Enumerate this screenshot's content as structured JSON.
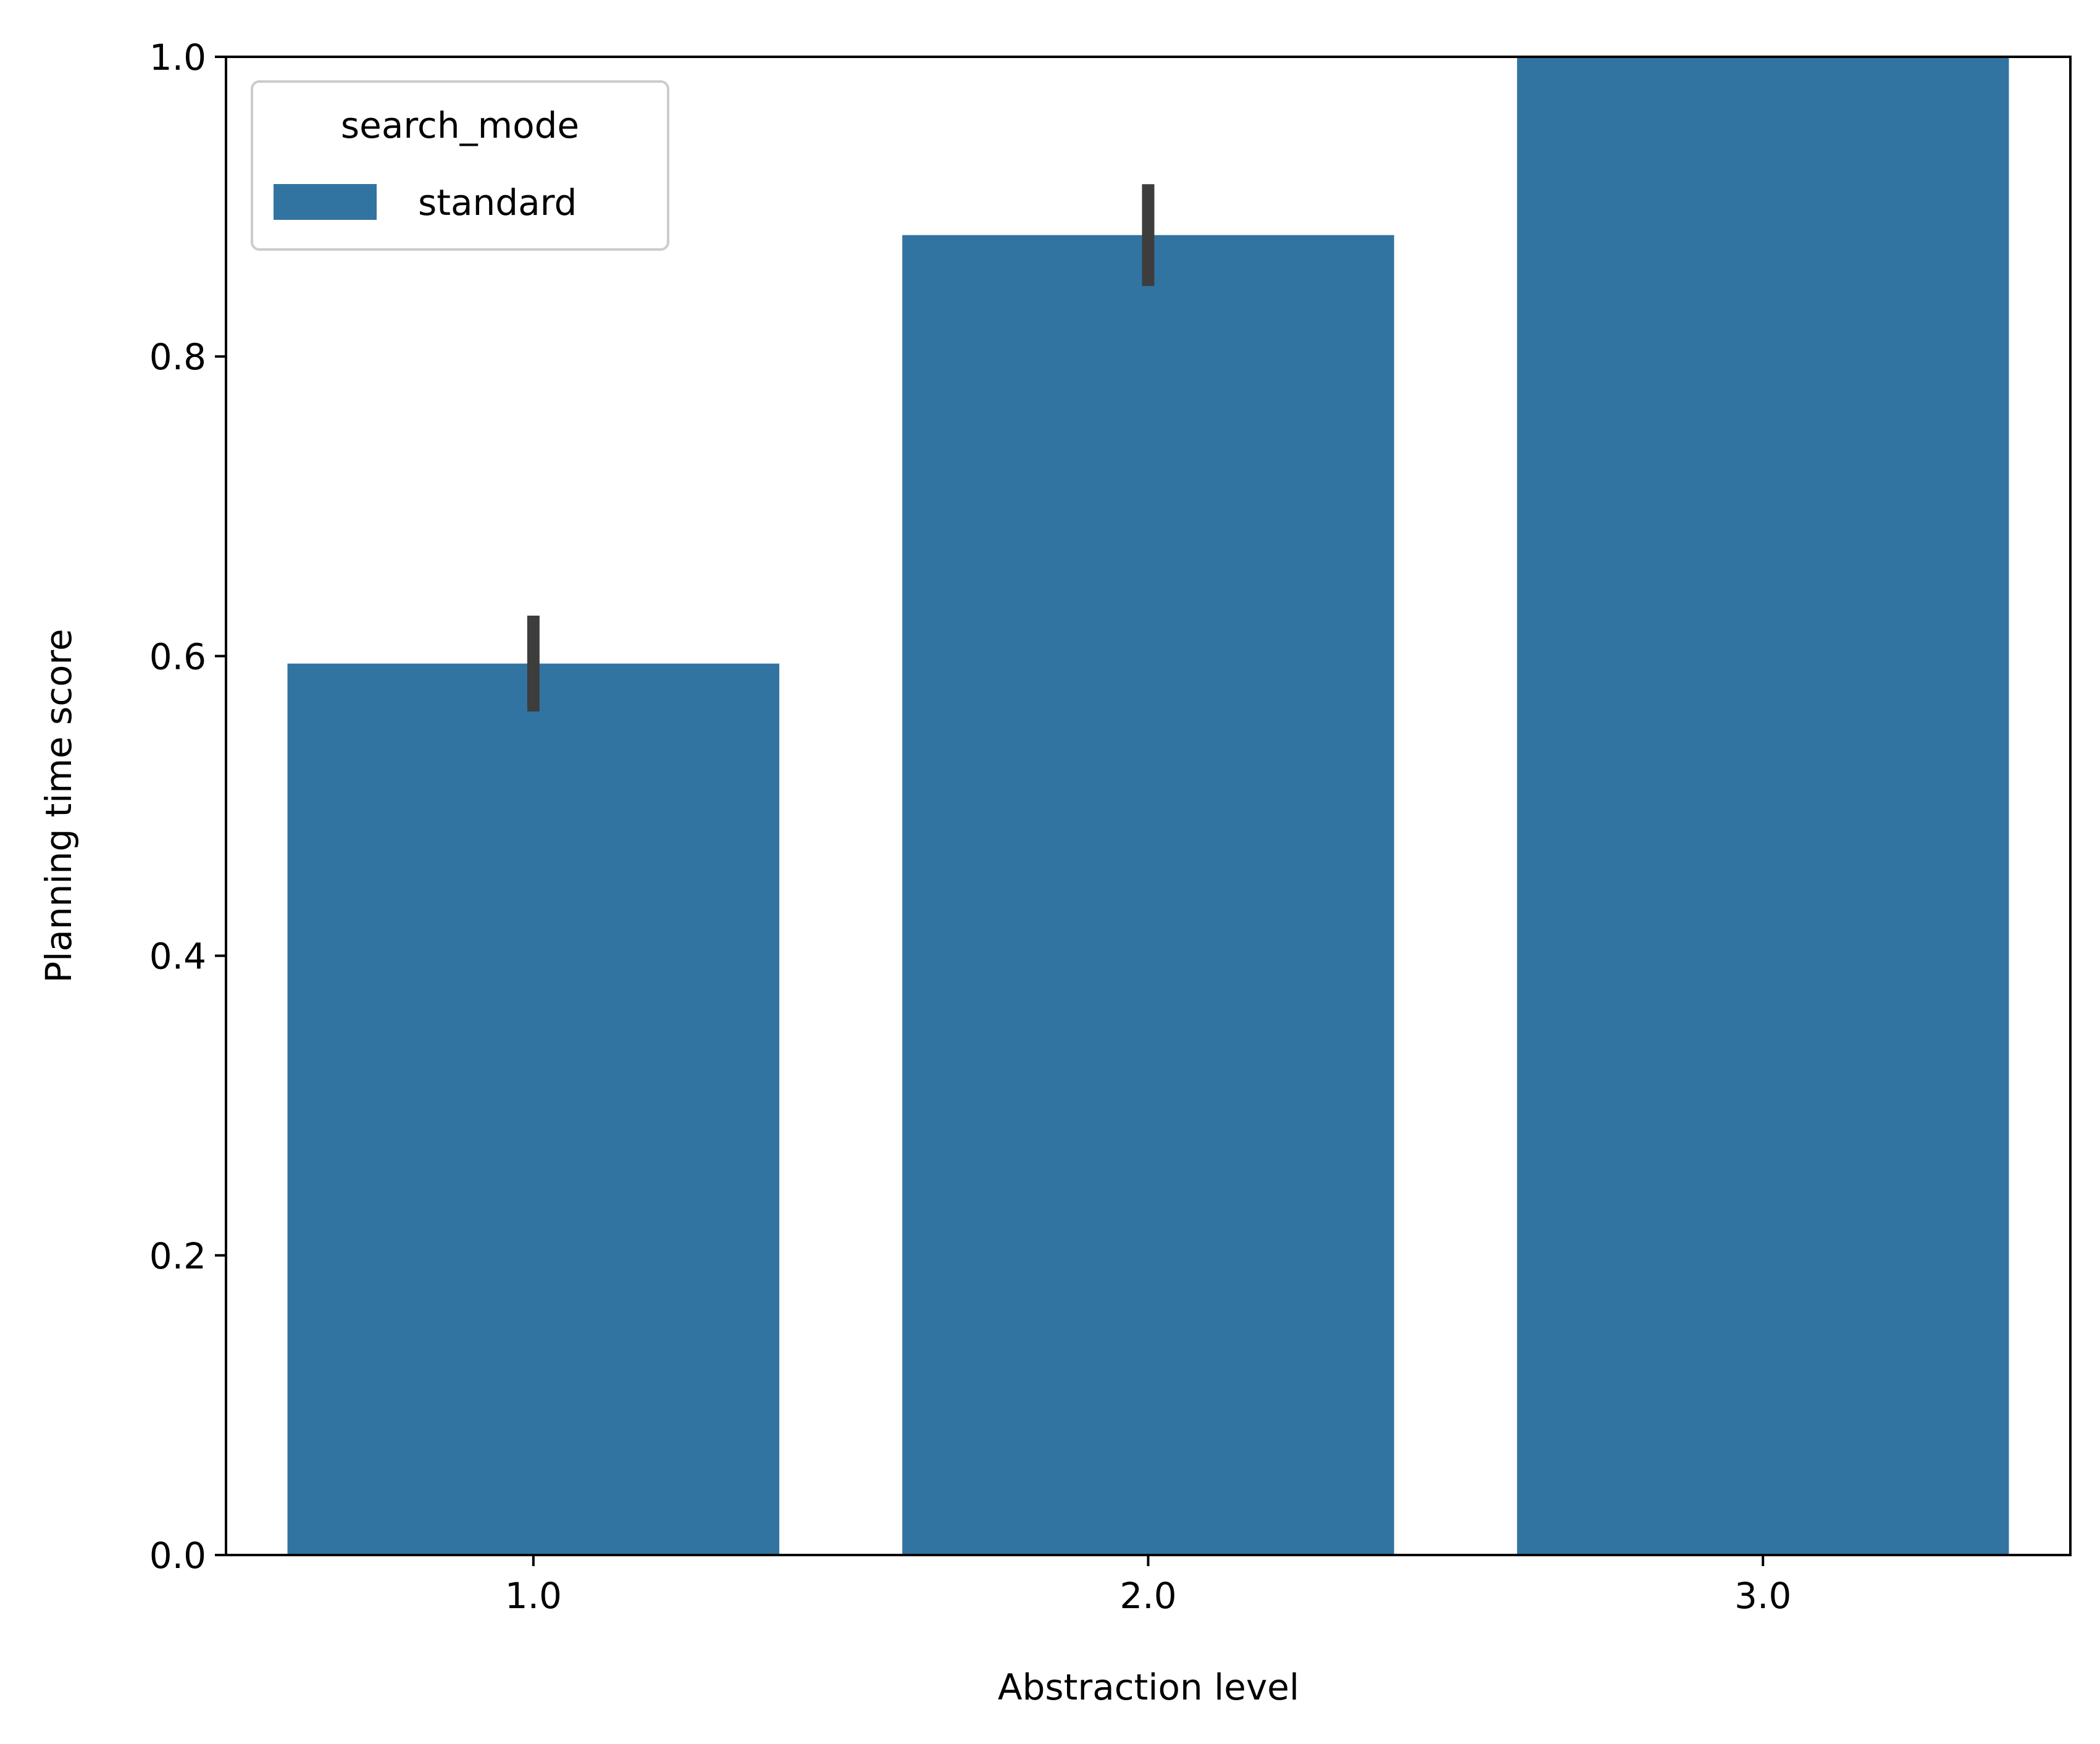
{
  "chart_data": {
    "type": "bar",
    "title": "",
    "xlabel": "Abstraction level",
    "ylabel": "Planning time score",
    "categories": [
      "1.0",
      "2.0",
      "3.0"
    ],
    "series": [
      {
        "name": "standard",
        "color": "#3274a1",
        "values": [
          0.595,
          0.881,
          1.0
        ],
        "error_low": [
          0.563,
          0.847,
          1.0
        ],
        "error_high": [
          0.627,
          0.915,
          1.0
        ]
      }
    ],
    "ylim": [
      0.0,
      1.0
    ],
    "yticks": [
      "0.0",
      "0.2",
      "0.4",
      "0.6",
      "0.8",
      "1.0"
    ],
    "grid": false,
    "legend": {
      "title": "search_mode",
      "placement": "top-left"
    },
    "error_bar_color": "#3d3d3d"
  }
}
